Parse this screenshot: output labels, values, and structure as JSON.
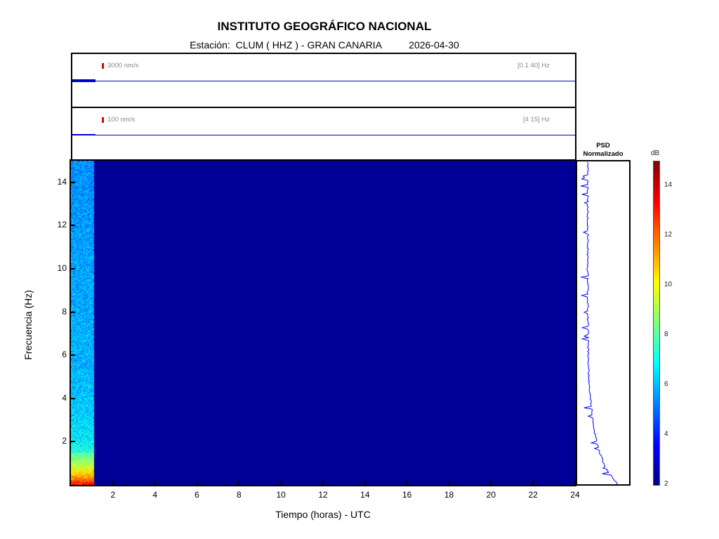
{
  "header": {
    "title": "INSTITUTO GEOGRÁFICO NACIONAL",
    "subtitle": "Estación:  CLUM ( HHZ ) - GRAN CANARIA          2026-04-30"
  },
  "traces": [
    {
      "scale_label": "3000 nm/s",
      "band_label": "[0.1 40] Hz"
    },
    {
      "scale_label": "100 nm/s",
      "band_label": "[4 15] Hz"
    }
  ],
  "chart_data": {
    "type": "heatmap",
    "xlabel": "Tiempo (horas) - UTC",
    "ylabel": "Frecuencia  (Hz)",
    "xlim": [
      0,
      24
    ],
    "ylim": [
      0,
      15
    ],
    "xticks": [
      2,
      4,
      6,
      8,
      10,
      12,
      14,
      16,
      18,
      20,
      22,
      24
    ],
    "yticks": [
      2,
      4,
      6,
      8,
      10,
      12,
      14
    ],
    "data_extent_hours": [
      0,
      1.1
    ],
    "colormap": "jet",
    "colorbar": {
      "label": "dB",
      "range": [
        2,
        15
      ],
      "ticks": [
        2,
        4,
        6,
        8,
        10,
        12,
        14
      ]
    },
    "background_level_db": 2.3,
    "psd_panel": {
      "title": "PSD Normalizado"
    }
  },
  "colors": {
    "trace": "#0000cc",
    "scale_marker": "#e00000",
    "psd": "#0000ff"
  }
}
